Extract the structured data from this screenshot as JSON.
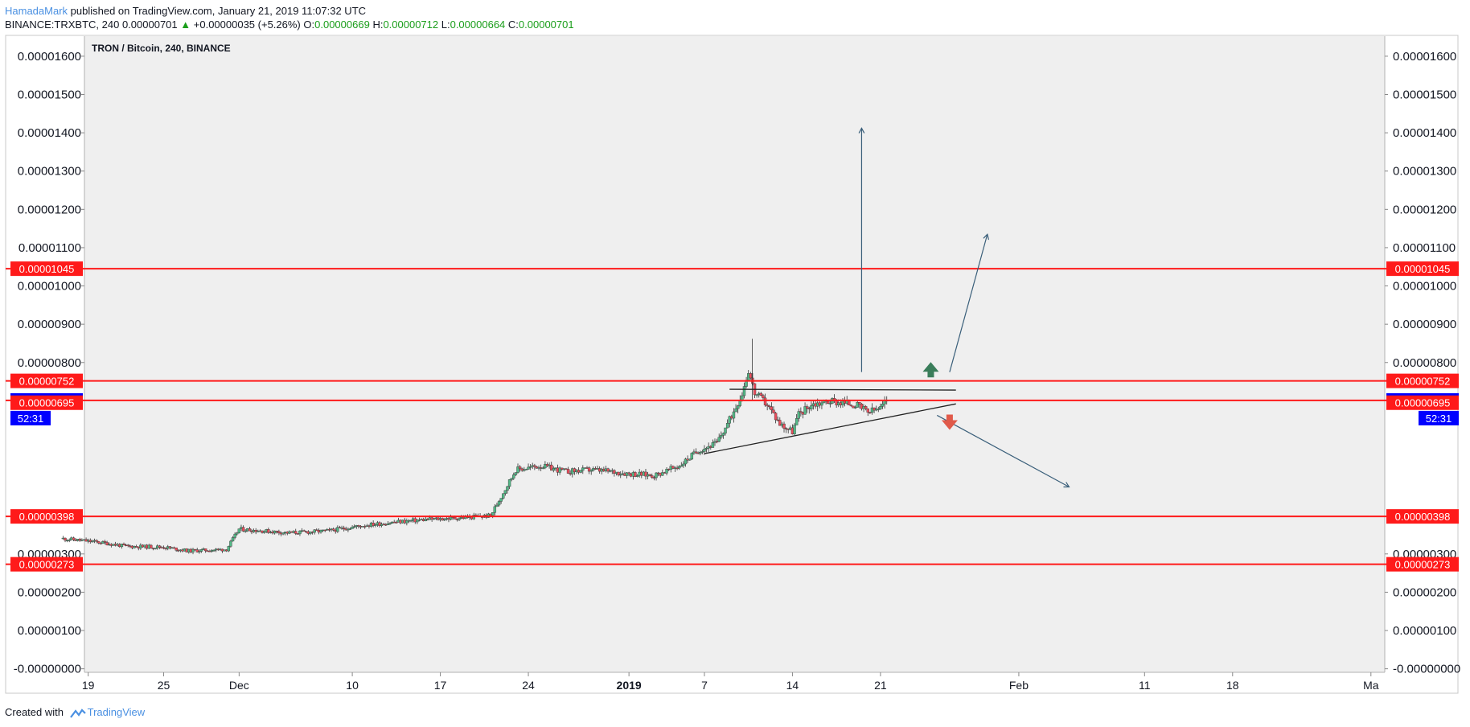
{
  "header": {
    "author": "HamadaMark",
    "published_text": "published on TradingView.com, January 21, 2019 11:07:32 UTC",
    "symbol": "BINANCE:TRXBTC, 240",
    "last": "0.00000701",
    "change": "+0.00000035 (+5.26%)",
    "open_label": "O:",
    "open": "0.00000669",
    "high_label": "H:",
    "high": "0.00000712",
    "low_label": "L:",
    "low": "0.00000664",
    "close_label": "C:",
    "close": "0.00000701"
  },
  "footer": {
    "created_with": "Created with",
    "brand": "TradingView"
  },
  "colors": {
    "background": "#efefef",
    "up_candle": "#53b987",
    "down_candle": "#eb4d5c",
    "level_line": "#ff1a1a",
    "price_label_bg": "#0000ff",
    "drawing_line": "#3a5f7a",
    "bull_arrow": "#3a7d5a",
    "bear_arrow": "#e05a4a"
  },
  "chart_data": {
    "type": "candlestick",
    "title": "TRON / Bitcoin, 240, BINANCE",
    "ylim": [
      -5e-08,
      1.625e-05
    ],
    "y_ticks": [
      "0.00001600",
      "0.00001500",
      "0.00001400",
      "0.00001300",
      "0.00001200",
      "0.00001100",
      "0.00001000",
      "0.00000900",
      "0.00000800",
      "0.00000300",
      "0.00000200",
      "0.00000100",
      "-0.00000000"
    ],
    "y_tick_values": [
      1.6e-05,
      1.5e-05,
      1.4e-05,
      1.3e-05,
      1.2e-05,
      1.1e-05,
      1e-05,
      9e-06,
      8e-06,
      3e-06,
      2e-06,
      1e-06,
      0
    ],
    "x_ticks": [
      {
        "label": "19",
        "day": 0,
        "bold": false
      },
      {
        "label": "25",
        "day": 6,
        "bold": false
      },
      {
        "label": "Dec",
        "day": 12,
        "bold": false
      },
      {
        "label": "10",
        "day": 21,
        "bold": false
      },
      {
        "label": "17",
        "day": 28,
        "bold": false
      },
      {
        "label": "24",
        "day": 35,
        "bold": false
      },
      {
        "label": "2019",
        "day": 43,
        "bold": true
      },
      {
        "label": "7",
        "day": 49,
        "bold": false
      },
      {
        "label": "14",
        "day": 56,
        "bold": false
      },
      {
        "label": "21",
        "day": 63,
        "bold": false
      },
      {
        "label": "Feb",
        "day": 74,
        "bold": false
      },
      {
        "label": "11",
        "day": 84,
        "bold": false
      },
      {
        "label": "18",
        "day": 91,
        "bold": false
      },
      {
        "label": "Ma",
        "day": 102,
        "bold": false
      }
    ],
    "x_range_days": [
      -0.3,
      103.1
    ],
    "levels": [
      {
        "price": 1.045e-05,
        "label": "0.00001045"
      },
      {
        "price": 7.52e-06,
        "label": "0.00000752"
      },
      {
        "price": 7.01e-06,
        "label": "0.00000701",
        "current": true
      },
      {
        "price": 6.95e-06,
        "label": "0.00000695",
        "line": false
      },
      {
        "price": 3.98e-06,
        "label": "0.00000398"
      },
      {
        "price": 2.73e-06,
        "label": "0.00000273"
      }
    ],
    "countdown": "52:31",
    "price_path": [
      [
        -2.0,
        3.4e-06
      ],
      [
        1.0,
        3.3e-06
      ],
      [
        3.0,
        3.2e-06
      ],
      [
        6.0,
        3.18e-06
      ],
      [
        8.0,
        3.08e-06
      ],
      [
        11.0,
        3.12e-06
      ],
      [
        12.0,
        3.65e-06
      ],
      [
        16.0,
        3.55e-06
      ],
      [
        19.0,
        3.6e-06
      ],
      [
        22.0,
        3.75e-06
      ],
      [
        25.0,
        3.85e-06
      ],
      [
        27.0,
        3.9e-06
      ],
      [
        30.0,
        3.95e-06
      ],
      [
        32.0,
        4e-06
      ],
      [
        33.0,
        4.6e-06
      ],
      [
        34.0,
        5.2e-06
      ],
      [
        36.0,
        5.3e-06
      ],
      [
        38.0,
        5.15e-06
      ],
      [
        40.0,
        5.2e-06
      ],
      [
        43.0,
        5.1e-06
      ],
      [
        45.0,
        5.05e-06
      ],
      [
        47.0,
        5.3e-06
      ],
      [
        48.5,
        5.7e-06
      ],
      [
        50.0,
        5.9e-06
      ],
      [
        51.0,
        6.5e-06
      ],
      [
        52.0,
        7.2e-06
      ],
      [
        52.5,
        7.8e-06
      ],
      [
        53.0,
        7.2e-06
      ],
      [
        54.0,
        6.9e-06
      ],
      [
        55.0,
        6.4e-06
      ],
      [
        56.0,
        6.2e-06
      ],
      [
        56.5,
        6.65e-06
      ],
      [
        57.5,
        6.9e-06
      ],
      [
        59.0,
        7e-06
      ],
      [
        60.0,
        6.95e-06
      ],
      [
        61.0,
        6.9e-06
      ],
      [
        62.0,
        6.7e-06
      ],
      [
        63.0,
        6.8e-06
      ],
      [
        63.5,
        7.01e-06
      ]
    ],
    "drawings": {
      "triangle_upper": [
        [
          51.0,
          7.3e-06
        ],
        [
          69.0,
          7.28e-06
        ]
      ],
      "triangle_lower": [
        [
          49.0,
          5.62e-06
        ],
        [
          69.0,
          6.92e-06
        ]
      ],
      "arrow_up_target": [
        [
          61.5,
          7.75e-06
        ],
        [
          61.5,
          1.412e-05
        ]
      ],
      "arrow_up_breakout": [
        [
          68.5,
          7.75e-06
        ],
        [
          71.5,
          1.135e-05
        ]
      ],
      "arrow_down_breakdown": [
        [
          67.5,
          6.62e-06
        ],
        [
          78.0,
          4.75e-06
        ]
      ],
      "bull_marker": [
        67.0,
        7.8e-06
      ],
      "bear_marker": [
        68.5,
        6.45e-06
      ]
    }
  }
}
